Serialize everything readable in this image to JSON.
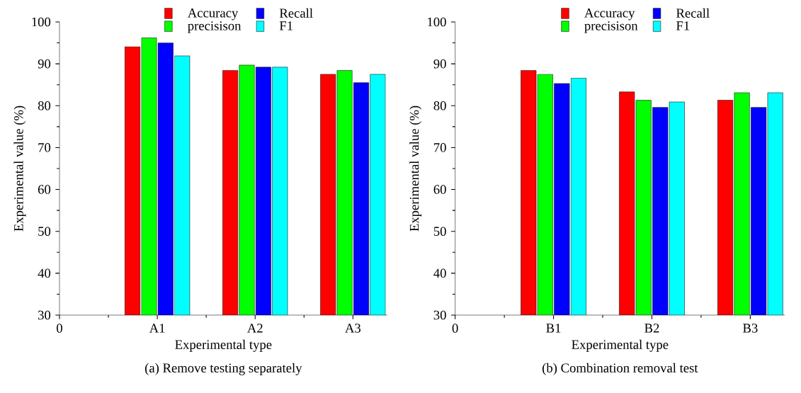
{
  "chart_data": [
    {
      "type": "bar",
      "title": "(a) Remove testing separately",
      "xlabel": "Experimental type",
      "ylabel": "Experimental value (%)",
      "categories": [
        "0",
        "A1",
        "A2",
        "A3"
      ],
      "ylim": [
        30,
        100
      ],
      "yticks": [
        30,
        40,
        50,
        60,
        70,
        80,
        90,
        100
      ],
      "legend": "top",
      "grid": false,
      "series": [
        {
          "name": "Accuracy",
          "color": "#ff0000",
          "values": [
            null,
            94.1,
            88.4,
            87.5
          ]
        },
        {
          "name": "precisison",
          "color": "#00ff00",
          "values": [
            null,
            96.2,
            89.7,
            88.4
          ]
        },
        {
          "name": "Recall",
          "color": "#0000ff",
          "values": [
            null,
            95.0,
            89.2,
            85.5
          ]
        },
        {
          "name": "F1",
          "color": "#00ffff",
          "values": [
            null,
            91.9,
            89.2,
            87.5
          ]
        }
      ]
    },
    {
      "type": "bar",
      "title": "(b) Combination removal test",
      "xlabel": "Experimental type",
      "ylabel": "Experimental value (%)",
      "categories": [
        "0",
        "B1",
        "B2",
        "B3"
      ],
      "ylim": [
        30,
        100
      ],
      "yticks": [
        30,
        40,
        50,
        60,
        70,
        80,
        90,
        100
      ],
      "legend": "top",
      "grid": false,
      "series": [
        {
          "name": "Accuracy",
          "color": "#ff0000",
          "values": [
            null,
            88.4,
            83.3,
            81.3
          ]
        },
        {
          "name": "precisison",
          "color": "#00ff00",
          "values": [
            null,
            87.5,
            81.3,
            83.1
          ]
        },
        {
          "name": "Recall",
          "color": "#0000ff",
          "values": [
            null,
            85.3,
            79.6,
            79.6
          ]
        },
        {
          "name": "F1",
          "color": "#00ffff",
          "values": [
            null,
            86.6,
            80.9,
            83.1
          ]
        }
      ]
    }
  ]
}
